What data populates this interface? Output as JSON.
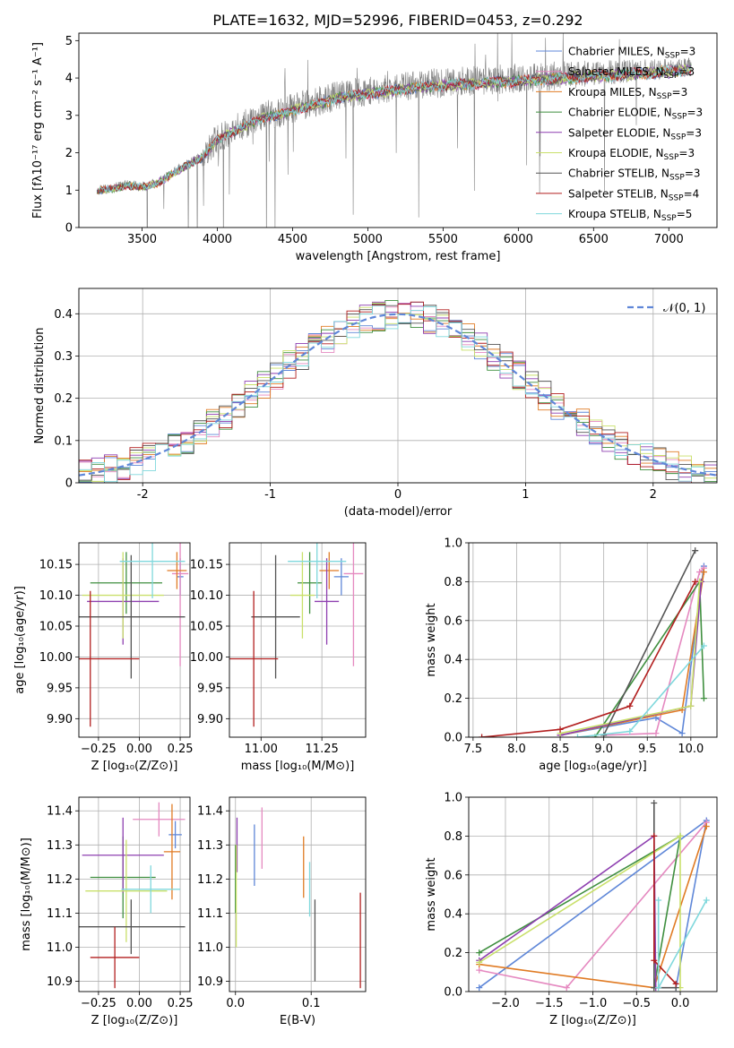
{
  "figure": {
    "title": "PLATE=1632, MJD=52996, FIBERID=0453, z=0.292"
  },
  "colors": {
    "Chabrier MILES": "#5f87d8",
    "Salpeter MILES": "#e589c0",
    "Kroupa MILES": "#e07b24",
    "Chabrier ELODIE": "#3f8f3f",
    "Salpeter ELODIE": "#8e3fb0",
    "Kroupa ELODIE": "#c9e06a",
    "Chabrier STELIB": "#555555",
    "Salpeter STELIB": "#b21f1f",
    "Kroupa STELIB": "#7fd8dc"
  },
  "chart_data": [
    {
      "id": "spectrum",
      "type": "line",
      "title": "PLATE=1632, MJD=52996, FIBERID=0453, z=0.292",
      "xlabel": "wavelength [Angstrom, rest frame]",
      "ylabel": "Flux [fλ10⁻¹⁷ erg cm⁻² s⁻¹ A⁻¹]",
      "xlim": [
        3080,
        7320
      ],
      "ylim": [
        0,
        5.2
      ],
      "xticks": [
        3500,
        4000,
        4500,
        5000,
        5500,
        6000,
        6500,
        7000
      ],
      "yticks": [
        0,
        1,
        2,
        3,
        4,
        5
      ],
      "grid": false,
      "legend_position": "top-right",
      "legend": [
        {
          "label": "Chabrier MILES, N",
          "sub": "SSP",
          "n": "=3",
          "series": "Chabrier MILES"
        },
        {
          "label": "Salpeter MILES, N",
          "sub": "SSP",
          "n": "=3",
          "series": "Salpeter MILES"
        },
        {
          "label": "Kroupa MILES, N",
          "sub": "SSP",
          "n": "=3",
          "series": "Kroupa MILES"
        },
        {
          "label": "Chabrier ELODIE, N",
          "sub": "SSP",
          "n": "=3",
          "series": "Chabrier ELODIE"
        },
        {
          "label": "Salpeter ELODIE, N",
          "sub": "SSP",
          "n": "=3",
          "series": "Salpeter ELODIE"
        },
        {
          "label": "Kroupa ELODIE, N",
          "sub": "SSP",
          "n": "=3",
          "series": "Kroupa ELODIE"
        },
        {
          "label": "Chabrier STELIB, N",
          "sub": "SSP",
          "n": "=3",
          "series": "Chabrier STELIB"
        },
        {
          "label": "Salpeter STELIB, N",
          "sub": "SSP",
          "n": "=4",
          "series": "Salpeter STELIB"
        },
        {
          "label": "Kroupa STELIB, N",
          "sub": "SSP",
          "n": "=5",
          "series": "Kroupa STELIB"
        }
      ],
      "data_series": {
        "name": "data",
        "color": "#808080",
        "x_range": [
          3200,
          7150
        ],
        "continuum_knots": {
          "x": [
            3200,
            3300,
            3400,
            3500,
            3600,
            3700,
            3800,
            3900,
            4000,
            4100,
            4200,
            4300,
            4400,
            4500,
            4600,
            4700,
            4800,
            4900,
            5000,
            5200,
            5400,
            5600,
            5800,
            6000,
            6200,
            6400,
            6600,
            6800,
            7000,
            7150
          ],
          "y": [
            1.0,
            1.05,
            1.15,
            1.1,
            1.2,
            1.45,
            1.7,
            1.9,
            2.4,
            2.6,
            2.8,
            3.0,
            3.05,
            3.2,
            3.3,
            3.4,
            3.55,
            3.6,
            3.65,
            3.75,
            3.85,
            3.9,
            3.95,
            4.0,
            4.05,
            4.1,
            4.15,
            4.2,
            4.25,
            4.3
          ]
        }
      },
      "model_series": [
        "Chabrier MILES",
        "Salpeter MILES",
        "Kroupa MILES",
        "Chabrier ELODIE",
        "Salpeter ELODIE",
        "Kroupa ELODIE",
        "Chabrier STELIB",
        "Salpeter STELIB",
        "Kroupa STELIB"
      ]
    },
    {
      "id": "residuals",
      "type": "line",
      "xlabel": "(data-model)/error",
      "ylabel": "Normed distribution",
      "xlim": [
        -2.5,
        2.5
      ],
      "ylim": [
        0,
        0.46
      ],
      "xticks": [
        -2,
        -1,
        0,
        1,
        2
      ],
      "yticks": [
        0.0,
        0.1,
        0.2,
        0.3,
        0.4
      ],
      "grid": true,
      "legend_position": "top-right",
      "legend": [
        {
          "label": "𝒩(0, 1)",
          "color": "#5f87d8",
          "dash": true
        }
      ],
      "histogram": {
        "bin_start": -2.5,
        "bin_width": 0.1,
        "n_bins": 50
      }
    },
    {
      "id": "age_vs_Z",
      "type": "scatter",
      "xlabel": "Z [log₁₀(Z/Z⊙)]",
      "ylabel": "age  [log₁₀(age/yr)]",
      "xlim": [
        -0.37,
        0.31
      ],
      "ylim": [
        9.87,
        10.185
      ],
      "xticks": [
        -0.25,
        0.0,
        0.25
      ],
      "xticklabels": [
        "−0.25",
        "0.00",
        "0.25"
      ],
      "yticks": [
        9.9,
        9.95,
        10.0,
        10.05,
        10.1,
        10.15
      ],
      "yticklabels": [
        "9.90",
        "9.95",
        "10.00",
        "10.05",
        "10.10",
        "10.15"
      ],
      "grid": true,
      "points": [
        {
          "series": "Chabrier MILES",
          "x": 0.25,
          "xerr": 0.02,
          "y": 10.13,
          "yerr": 0.03
        },
        {
          "series": "Salpeter MILES",
          "x": 0.25,
          "xerr": 0.05,
          "y": 10.135,
          "yerr": 0.15
        },
        {
          "series": "Kroupa MILES",
          "x": 0.23,
          "xerr": 0.06,
          "y": 10.14,
          "yerr": 0.03
        },
        {
          "series": "Chabrier ELODIE",
          "x": -0.08,
          "xerr": 0.22,
          "y": 10.12,
          "yerr": 0.05
        },
        {
          "series": "Salpeter ELODIE",
          "x": -0.1,
          "xerr": 0.22,
          "y": 10.09,
          "yerr": 0.07
        },
        {
          "series": "Kroupa ELODIE",
          "x": -0.1,
          "xerr": 0.25,
          "y": 10.1,
          "yerr": 0.07
        },
        {
          "series": "Chabrier STELIB",
          "x": -0.05,
          "xerr": 0.33,
          "y": 10.065,
          "yerr": 0.1
        },
        {
          "series": "Salpeter STELIB",
          "x": -0.3,
          "xerr": 0.3,
          "y": 9.997,
          "yerr": 0.11
        },
        {
          "series": "Kroupa STELIB",
          "x": 0.08,
          "xerr": 0.2,
          "y": 10.155,
          "yerr": 0.06
        }
      ]
    },
    {
      "id": "age_vs_mass",
      "type": "scatter",
      "xlabel": "mass [log₁₀(M/M⊙)]",
      "xlim": [
        10.87,
        11.43
      ],
      "ylim": [
        9.87,
        10.185
      ],
      "xticks": [
        11.0,
        11.25
      ],
      "xticklabels": [
        "11.00",
        "11.25"
      ],
      "yticks": [
        9.9,
        9.95,
        10.0,
        10.05,
        10.1,
        10.15
      ],
      "yticklabels": [
        "9.90",
        "9.95",
        "10.00",
        "10.05",
        "10.10",
        "10.15"
      ],
      "grid": true,
      "points": [
        {
          "series": "Chabrier MILES",
          "x": 11.33,
          "xerr": 0.03,
          "y": 10.13,
          "yerr": 0.03
        },
        {
          "series": "Salpeter MILES",
          "x": 11.38,
          "xerr": 0.04,
          "y": 10.135,
          "yerr": 0.15
        },
        {
          "series": "Kroupa MILES",
          "x": 11.28,
          "xerr": 0.04,
          "y": 10.14,
          "yerr": 0.03
        },
        {
          "series": "Chabrier ELODIE",
          "x": 11.2,
          "xerr": 0.05,
          "y": 10.12,
          "yerr": 0.05
        },
        {
          "series": "Salpeter ELODIE",
          "x": 11.27,
          "xerr": 0.05,
          "y": 10.09,
          "yerr": 0.07
        },
        {
          "series": "Kroupa ELODIE",
          "x": 11.17,
          "xerr": 0.05,
          "y": 10.1,
          "yerr": 0.07
        },
        {
          "series": "Chabrier STELIB",
          "x": 11.06,
          "xerr": 0.1,
          "y": 10.065,
          "yerr": 0.1
        },
        {
          "series": "Salpeter STELIB",
          "x": 10.97,
          "xerr": 0.1,
          "y": 9.997,
          "yerr": 0.11
        },
        {
          "series": "Kroupa STELIB",
          "x": 11.23,
          "xerr": 0.12,
          "y": 10.155,
          "yerr": 0.06
        }
      ]
    },
    {
      "id": "weight_vs_age",
      "type": "line",
      "xlabel": "age  [log₁₀(age/yr)]",
      "ylabel": "mass weight",
      "xlim": [
        7.45,
        10.3
      ],
      "ylim": [
        0,
        1.0
      ],
      "xticks": [
        7.5,
        8.0,
        8.5,
        9.0,
        9.5,
        10.0
      ],
      "xticklabels": [
        "7.5",
        "8.0",
        "8.5",
        "9.0",
        "9.5",
        "10.0"
      ],
      "yticks": [
        0.0,
        0.2,
        0.4,
        0.6,
        0.8,
        1.0
      ],
      "yticklabels": [
        "0.0",
        "0.2",
        "0.4",
        "0.6",
        "0.8",
        "1.0"
      ],
      "grid": true,
      "series": [
        {
          "name": "Chabrier MILES",
          "x": [
            8.5,
            9.6,
            9.9,
            10.15
          ],
          "y": [
            0.01,
            0.1,
            0.02,
            0.88
          ]
        },
        {
          "name": "Salpeter MILES",
          "x": [
            9.0,
            9.6,
            10.1,
            10.15
          ],
          "y": [
            0.01,
            0.02,
            0.85,
            0.87
          ]
        },
        {
          "name": "Kroupa MILES",
          "x": [
            8.5,
            9.9,
            10.15
          ],
          "y": [
            0.01,
            0.14,
            0.85
          ]
        },
        {
          "name": "Chabrier ELODIE",
          "x": [
            8.9,
            10.1,
            10.15
          ],
          "y": [
            0.0,
            0.8,
            0.2
          ]
        },
        {
          "name": "Salpeter ELODIE",
          "x": [
            8.5,
            10.0,
            10.12
          ],
          "y": [
            0.01,
            0.16,
            0.8
          ]
        },
        {
          "name": "Kroupa ELODIE",
          "x": [
            8.5,
            10.0,
            10.1
          ],
          "y": [
            0.02,
            0.16,
            0.8
          ]
        },
        {
          "name": "Chabrier STELIB",
          "x": [
            9.0,
            10.05
          ],
          "y": [
            0.01,
            0.96
          ]
        },
        {
          "name": "Salpeter STELIB",
          "x": [
            7.6,
            8.5,
            9.3,
            10.05
          ],
          "y": [
            0.0,
            0.04,
            0.16,
            0.8
          ]
        },
        {
          "name": "Kroupa STELIB",
          "x": [
            8.7,
            9.3,
            10.15
          ],
          "y": [
            0.0,
            0.03,
            0.47
          ]
        }
      ]
    },
    {
      "id": "mass_vs_Z",
      "type": "scatter",
      "xlabel": "Z [log₁₀(Z/Z⊙)]",
      "ylabel": "mass [log₁₀(M/M⊙)]",
      "xlim": [
        -0.37,
        0.31
      ],
      "ylim": [
        10.87,
        11.44
      ],
      "xticks": [
        -0.25,
        0.0,
        0.25
      ],
      "xticklabels": [
        "−0.25",
        "0.00",
        "0.25"
      ],
      "yticks": [
        10.9,
        11.0,
        11.1,
        11.2,
        11.3,
        11.4
      ],
      "yticklabels": [
        "10.9",
        "11.0",
        "11.1",
        "11.2",
        "11.3",
        "11.4"
      ],
      "grid": true,
      "points": [
        {
          "series": "Chabrier MILES",
          "x": 0.22,
          "xerr": 0.04,
          "y": 11.33,
          "yerr": 0.04
        },
        {
          "series": "Salpeter MILES",
          "x": 0.12,
          "xerr": 0.16,
          "y": 11.375,
          "yerr": 0.05
        },
        {
          "series": "Kroupa MILES",
          "x": 0.2,
          "xerr": 0.05,
          "y": 11.28,
          "yerr": 0.14
        },
        {
          "series": "Chabrier ELODIE",
          "x": -0.1,
          "xerr": 0.2,
          "y": 11.205,
          "yerr": 0.12
        },
        {
          "series": "Salpeter ELODIE",
          "x": -0.1,
          "xerr": 0.25,
          "y": 11.27,
          "yerr": 0.11
        },
        {
          "series": "Kroupa ELODIE",
          "x": -0.08,
          "xerr": 0.25,
          "y": 11.165,
          "yerr": 0.15
        },
        {
          "series": "Chabrier STELIB",
          "x": -0.05,
          "xerr": 0.33,
          "y": 11.06,
          "yerr": 0.08
        },
        {
          "series": "Salpeter STELIB",
          "x": -0.15,
          "xerr": 0.15,
          "y": 10.97,
          "yerr": 0.09
        },
        {
          "series": "Kroupa STELIB",
          "x": 0.07,
          "xerr": 0.18,
          "y": 11.17,
          "yerr": 0.07
        }
      ]
    },
    {
      "id": "mass_vs_EBV",
      "type": "scatter",
      "xlabel": "E(B-V)",
      "xlim": [
        -0.008,
        0.172
      ],
      "ylim": [
        10.87,
        11.44
      ],
      "xticks": [
        0.0,
        0.1
      ],
      "xticklabels": [
        "0.0",
        "0.1"
      ],
      "yticks": [
        10.9,
        11.0,
        11.1,
        11.2,
        11.3,
        11.4
      ],
      "yticklabels": [
        "10.9",
        "11.0",
        "11.1",
        "11.2",
        "11.3",
        "11.4"
      ],
      "grid": true,
      "points": [
        {
          "series": "Chabrier MILES",
          "x": 0.025,
          "xerr": 0,
          "y": 11.27,
          "yerr": 0.09
        },
        {
          "series": "Salpeter MILES",
          "x": 0.035,
          "xerr": 0,
          "y": 11.32,
          "yerr": 0.09
        },
        {
          "series": "Kroupa MILES",
          "x": 0.09,
          "xerr": 0,
          "y": 11.235,
          "yerr": 0.09
        },
        {
          "series": "Chabrier ELODIE",
          "x": 0.0,
          "xerr": 0,
          "y": 11.2,
          "yerr": 0.1
        },
        {
          "series": "Salpeter ELODIE",
          "x": 0.002,
          "xerr": 0,
          "y": 11.3,
          "yerr": 0.08
        },
        {
          "series": "Kroupa ELODIE",
          "x": 0.001,
          "xerr": 0,
          "y": 11.15,
          "yerr": 0.15
        },
        {
          "series": "Chabrier STELIB",
          "x": 0.105,
          "xerr": 0,
          "y": 11.02,
          "yerr": 0.12
        },
        {
          "series": "Salpeter STELIB",
          "x": 0.165,
          "xerr": 0,
          "y": 11.02,
          "yerr": 0.14
        },
        {
          "series": "Kroupa STELIB",
          "x": 0.098,
          "xerr": 0,
          "y": 11.17,
          "yerr": 0.08
        }
      ]
    },
    {
      "id": "weight_vs_Z",
      "type": "line",
      "xlabel": "Z [log₁₀(Z/Z⊙)]",
      "ylabel": "mass weight",
      "xlim": [
        -2.42,
        0.42
      ],
      "ylim": [
        0,
        1.0
      ],
      "xticks": [
        -2.0,
        -1.5,
        -1.0,
        -0.5,
        0.0
      ],
      "xticklabels": [
        "−2.0",
        "−1.5",
        "−1.0",
        "−0.5",
        "0.0"
      ],
      "yticks": [
        0.0,
        0.2,
        0.4,
        0.6,
        0.8,
        1.0
      ],
      "yticklabels": [
        "0.0",
        "0.2",
        "0.4",
        "0.6",
        "0.8",
        "1.0"
      ],
      "grid": true,
      "series": [
        {
          "name": "Chabrier MILES",
          "x": [
            -2.3,
            0.3,
            -0.05
          ],
          "y": [
            0.02,
            0.88,
            0.02
          ]
        },
        {
          "name": "Salpeter MILES",
          "x": [
            -2.3,
            -1.3,
            0.3
          ],
          "y": [
            0.11,
            0.02,
            0.87
          ]
        },
        {
          "name": "Kroupa MILES",
          "x": [
            -2.3,
            -0.3,
            0.3
          ],
          "y": [
            0.14,
            0.02,
            0.85
          ]
        },
        {
          "name": "Chabrier ELODIE",
          "x": [
            -2.3,
            0.0,
            -0.3
          ],
          "y": [
            0.2,
            0.8,
            0.02
          ]
        },
        {
          "name": "Salpeter ELODIE",
          "x": [
            -2.3,
            -0.3,
            -0.28
          ],
          "y": [
            0.16,
            0.8,
            0.02
          ]
        },
        {
          "name": "Kroupa ELODIE",
          "x": [
            -2.3,
            0.0,
            0.0
          ],
          "y": [
            0.15,
            0.8,
            0.02
          ]
        },
        {
          "name": "Chabrier STELIB",
          "x": [
            -0.3,
            -0.3,
            -0.05
          ],
          "y": [
            0.97,
            0.02,
            0.02
          ]
        },
        {
          "name": "Salpeter STELIB",
          "x": [
            -0.3,
            -0.3,
            -0.05
          ],
          "y": [
            0.8,
            0.16,
            0.04
          ]
        },
        {
          "name": "Kroupa STELIB",
          "x": [
            -0.25,
            -0.25,
            0.3
          ],
          "y": [
            0.47,
            0.02,
            0.47
          ]
        }
      ]
    }
  ]
}
